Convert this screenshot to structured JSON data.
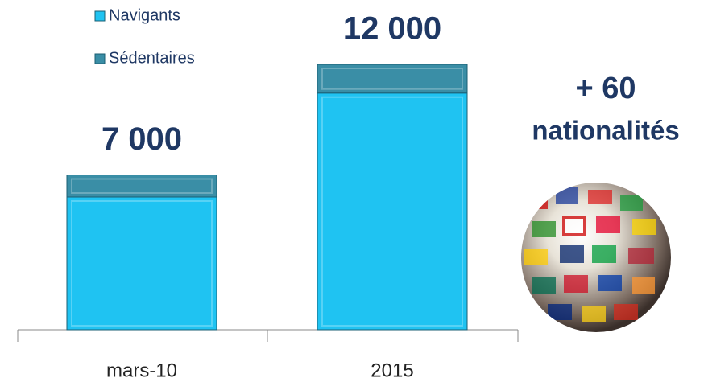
{
  "chart_data": {
    "type": "stacked-bar",
    "categories": [
      "mars-10",
      "2015"
    ],
    "series": [
      {
        "name": "Navigants",
        "color": "#1fc3f2",
        "values": [
          6000,
          10700
        ]
      },
      {
        "name": "Sédentaires",
        "color": "#3a8ea6",
        "values": [
          1000,
          1300
        ]
      }
    ],
    "totals": [
      7000,
      12000
    ],
    "total_labels": [
      "7 000",
      "12 000"
    ],
    "annotation": [
      "+ 60",
      "nationalités"
    ]
  }
}
